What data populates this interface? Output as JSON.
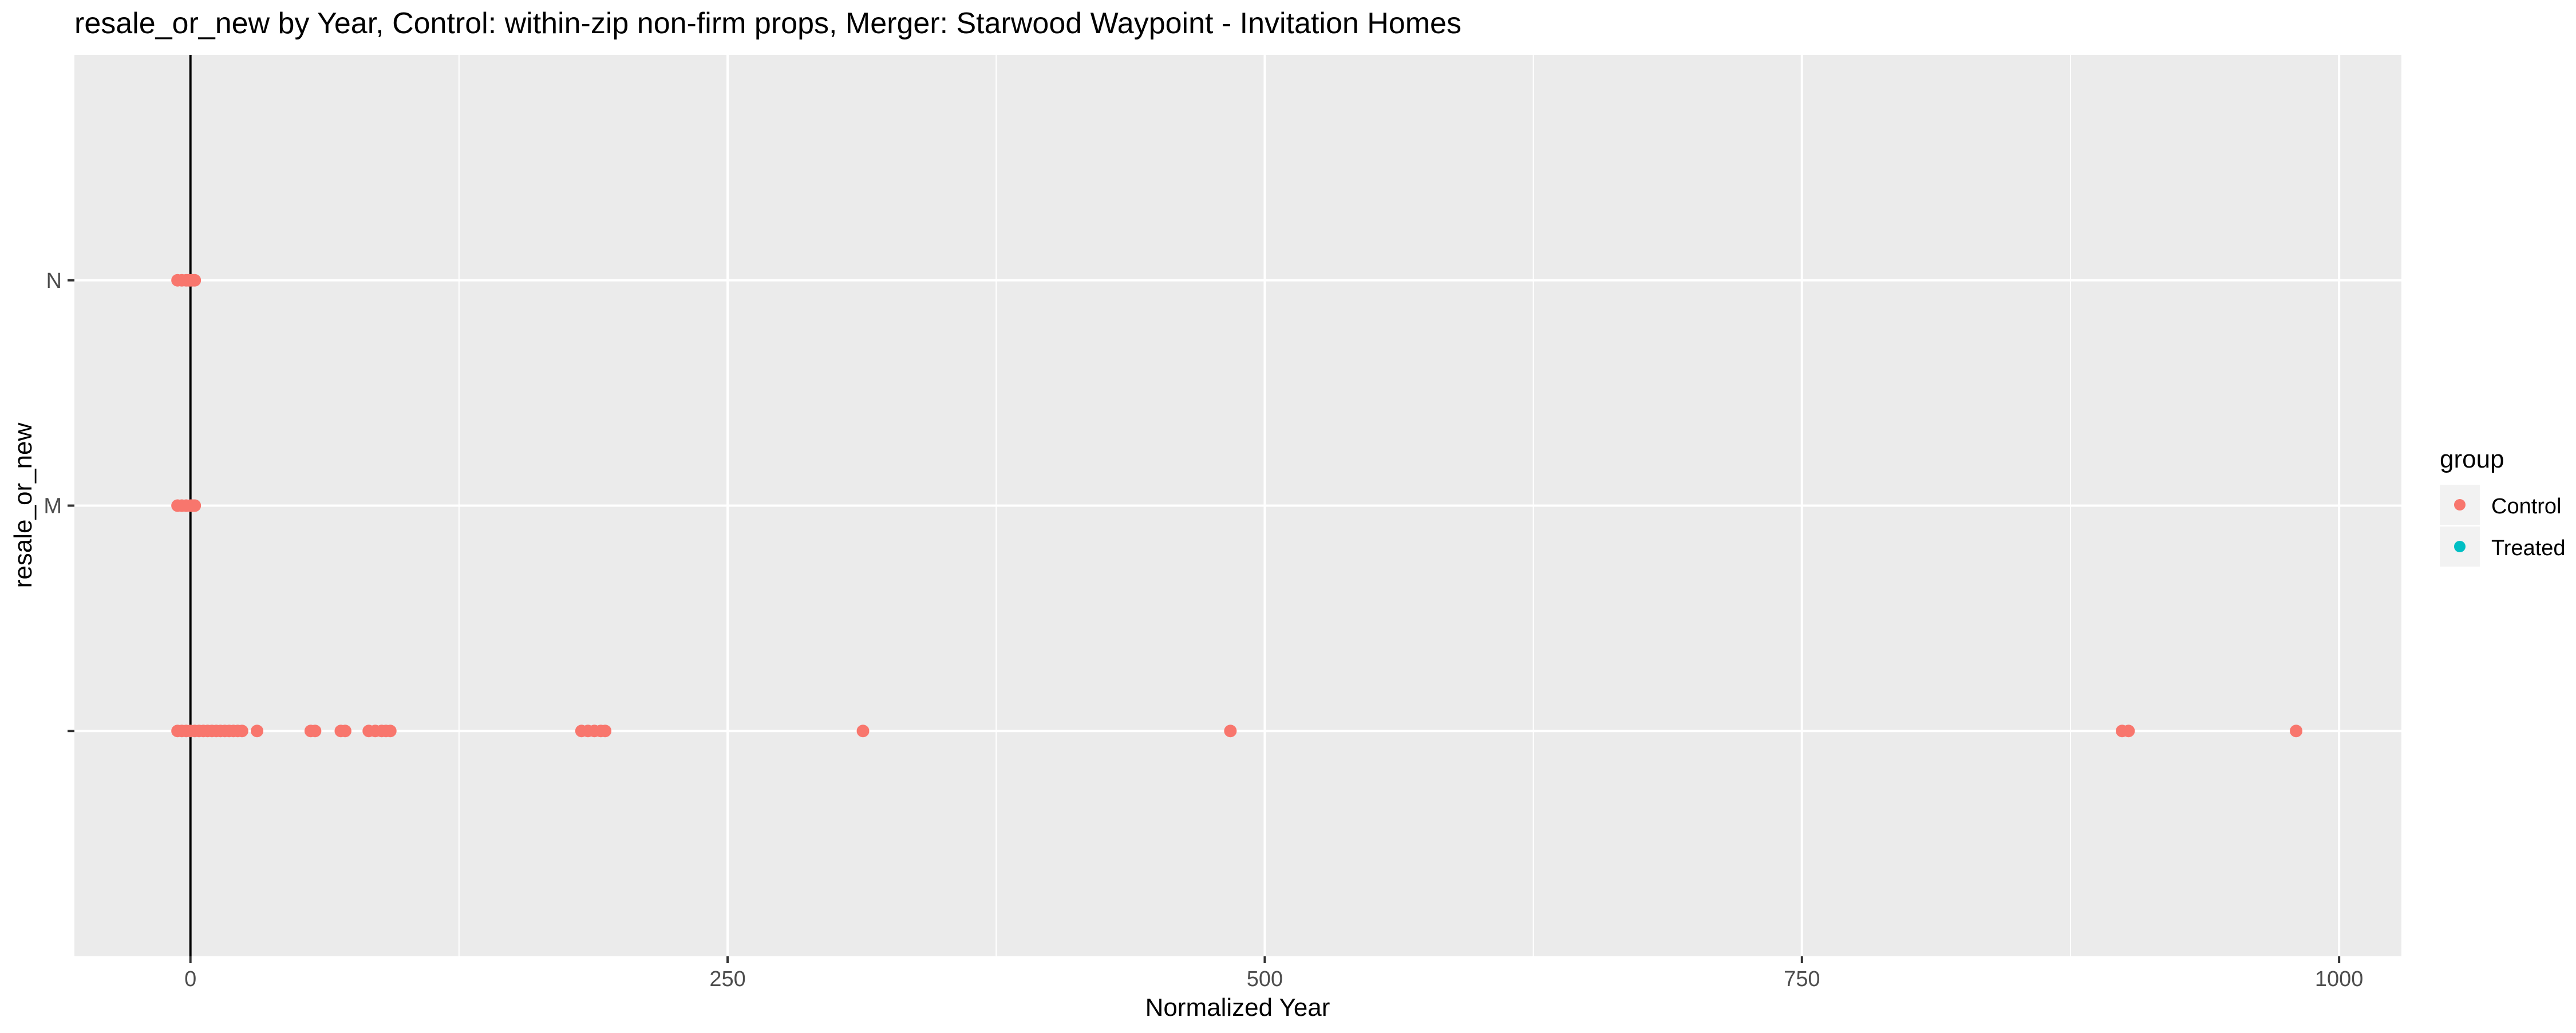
{
  "chart_data": {
    "type": "scatter",
    "title": "resale_or_new by Year, Control: within-zip non-firm props, Merger: Starwood Waypoint - Invitation Homes",
    "xlabel": "Normalized Year",
    "ylabel": "resale_or_new",
    "xlim": [
      -54,
      1029
    ],
    "x_ticks": [
      0,
      250,
      500,
      750,
      1000
    ],
    "x_tick_labels": [
      "0",
      "250",
      "500",
      "750",
      "1000"
    ],
    "y_categories": [
      "",
      "M",
      "N"
    ],
    "vline_x": 0,
    "grid": true,
    "legend": {
      "title": "group",
      "position": "right",
      "entries": [
        "Control",
        "Treated"
      ]
    },
    "colors": {
      "Control": "#F8766D",
      "Treated": "#00BFC4",
      "panel": "#EBEBEB",
      "grid": "#FFFFFF"
    },
    "series": [
      {
        "name": "Control",
        "points": [
          {
            "x": -6,
            "y": "N"
          },
          {
            "x": -4,
            "y": "N"
          },
          {
            "x": -2,
            "y": "N"
          },
          {
            "x": -1,
            "y": "N"
          },
          {
            "x": 0,
            "y": "N"
          },
          {
            "x": 1,
            "y": "N"
          },
          {
            "x": 2,
            "y": "N"
          },
          {
            "x": -6,
            "y": "M"
          },
          {
            "x": -4,
            "y": "M"
          },
          {
            "x": -2,
            "y": "M"
          },
          {
            "x": 0,
            "y": "M"
          },
          {
            "x": 1,
            "y": "M"
          },
          {
            "x": 2,
            "y": "M"
          },
          {
            "x": -6,
            "y": ""
          },
          {
            "x": -4,
            "y": ""
          },
          {
            "x": -2,
            "y": ""
          },
          {
            "x": 0,
            "y": ""
          },
          {
            "x": 2,
            "y": ""
          },
          {
            "x": 4,
            "y": ""
          },
          {
            "x": 6,
            "y": ""
          },
          {
            "x": 8,
            "y": ""
          },
          {
            "x": 10,
            "y": ""
          },
          {
            "x": 12,
            "y": ""
          },
          {
            "x": 14,
            "y": ""
          },
          {
            "x": 16,
            "y": ""
          },
          {
            "x": 18,
            "y": ""
          },
          {
            "x": 20,
            "y": ""
          },
          {
            "x": 22,
            "y": ""
          },
          {
            "x": 24,
            "y": ""
          },
          {
            "x": 31,
            "y": ""
          },
          {
            "x": 56,
            "y": ""
          },
          {
            "x": 58,
            "y": ""
          },
          {
            "x": 70,
            "y": ""
          },
          {
            "x": 72,
            "y": ""
          },
          {
            "x": 83,
            "y": ""
          },
          {
            "x": 86,
            "y": ""
          },
          {
            "x": 89,
            "y": ""
          },
          {
            "x": 91,
            "y": ""
          },
          {
            "x": 93,
            "y": ""
          },
          {
            "x": 182,
            "y": ""
          },
          {
            "x": 185,
            "y": ""
          },
          {
            "x": 188,
            "y": ""
          },
          {
            "x": 191,
            "y": ""
          },
          {
            "x": 193,
            "y": ""
          },
          {
            "x": 313,
            "y": ""
          },
          {
            "x": 484,
            "y": ""
          },
          {
            "x": 899,
            "y": ""
          },
          {
            "x": 902,
            "y": ""
          },
          {
            "x": 980,
            "y": ""
          }
        ]
      },
      {
        "name": "Treated",
        "points": []
      }
    ]
  }
}
